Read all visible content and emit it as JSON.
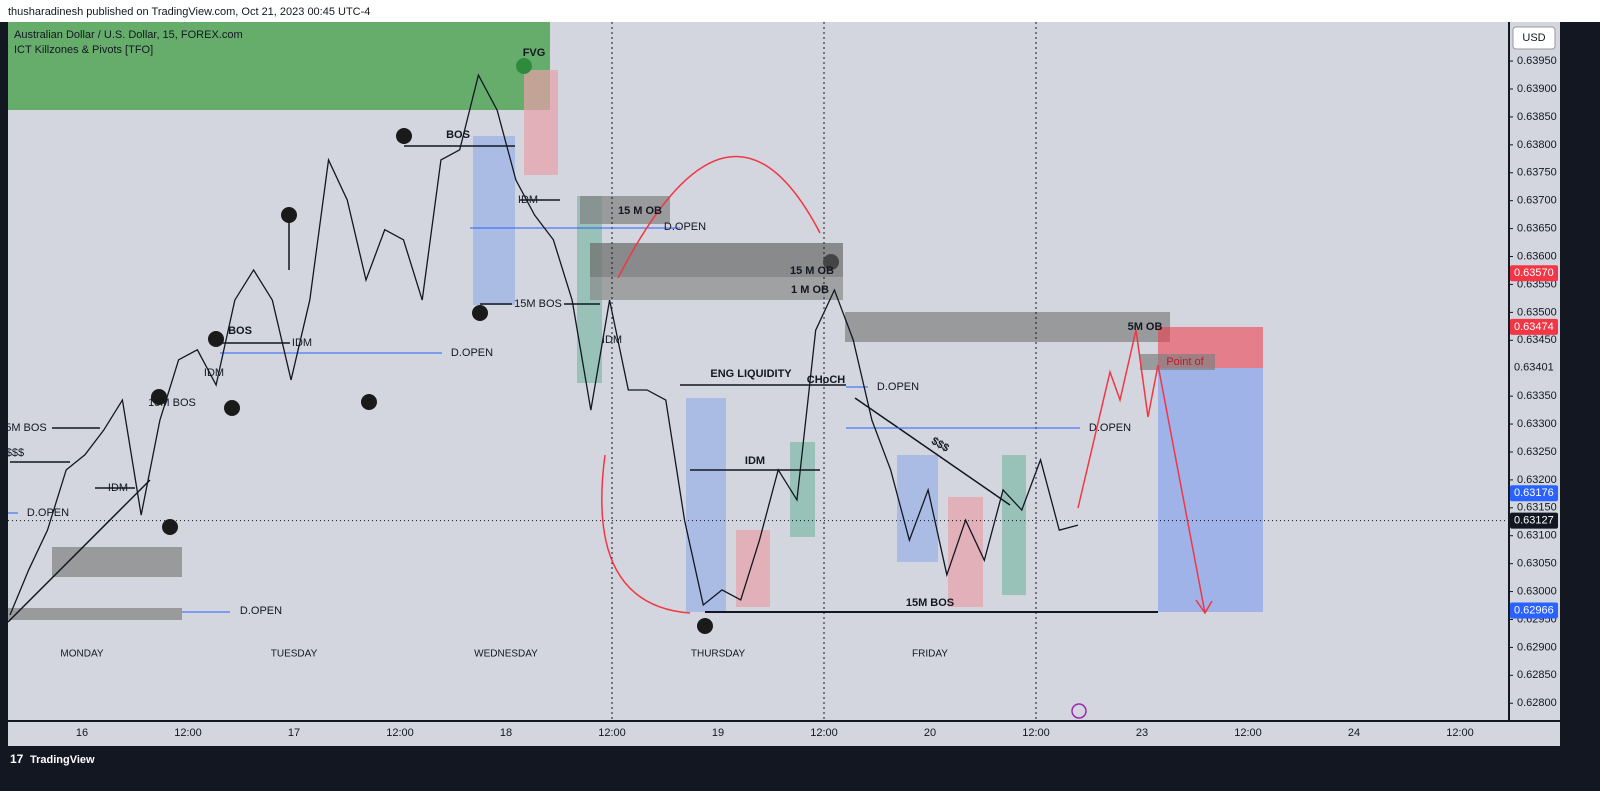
{
  "header": {
    "byline": "thusharadinesh published on TradingView.com, Oct 21, 2023 00:45 UTC-4"
  },
  "legend": {
    "symbol": "Australian Dollar / U.S. Dollar, 15, FOREX.com",
    "indicator": "ICT Killzones & Pivots [TFO]"
  },
  "currency": "USD",
  "footer": {
    "brand": "TradingView"
  },
  "chart_data": {
    "type": "line",
    "color": "#131722",
    "values": [
      0.62958,
      0.63039,
      0.6311,
      0.63218,
      0.63245,
      0.63289,
      0.63343,
      0.63137,
      0.63307,
      0.63415,
      0.63433,
      0.6337,
      0.63522,
      0.63576,
      0.63522,
      0.63379,
      0.63522,
      0.63773,
      0.63701,
      0.63558,
      0.63648,
      0.6363,
      0.63522,
      0.63773,
      0.63791,
      0.63925,
      0.63862,
      0.63737,
      0.63674,
      0.6363,
      0.63522,
      0.63325,
      0.63522,
      0.63361,
      0.63361,
      0.63343,
      0.63128,
      0.62976,
      0.63003,
      0.62985,
      0.63092,
      0.63218,
      0.63164,
      0.63468,
      0.6354,
      0.63451,
      0.63307,
      0.63218,
      0.63092,
      0.63182,
      0.6303,
      0.63128,
      0.63056,
      0.63182,
      0.63146,
      0.63236,
      0.6311,
      0.63119
    ],
    "ylim": [
      0.6277,
      0.6402
    ],
    "yticks": [
      {
        "value": 0.628,
        "label": "0.62800"
      },
      {
        "value": 0.6285,
        "label": "0.62850"
      },
      {
        "value": 0.629,
        "label": "0.62900"
      },
      {
        "value": 0.6295,
        "label": "0.62950"
      },
      {
        "value": 0.63,
        "label": "0.63000"
      },
      {
        "value": 0.6305,
        "label": "0.63050"
      },
      {
        "value": 0.631,
        "label": "0.63100"
      },
      {
        "value": 0.6315,
        "label": "0.63150"
      },
      {
        "value": 0.632,
        "label": "0.63200"
      },
      {
        "value": 0.6325,
        "label": "0.63250"
      },
      {
        "value": 0.633,
        "label": "0.63300"
      },
      {
        "value": 0.6335,
        "label": "0.63350"
      },
      {
        "value": 0.6345,
        "label": "0.63450"
      },
      {
        "value": 0.635,
        "label": "0.63500"
      },
      {
        "value": 0.6355,
        "label": "0.63550"
      },
      {
        "value": 0.636,
        "label": "0.63600"
      },
      {
        "value": 0.6365,
        "label": "0.63650"
      },
      {
        "value": 0.637,
        "label": "0.63700"
      },
      {
        "value": 0.6375,
        "label": "0.63750"
      },
      {
        "value": 0.638,
        "label": "0.63800"
      },
      {
        "value": 0.6385,
        "label": "0.63850"
      },
      {
        "value": 0.639,
        "label": "0.63900"
      },
      {
        "value": 0.6395,
        "label": "0.63950"
      }
    ],
    "price_labels": [
      {
        "value": 0.6357,
        "label": "0.63570",
        "color": "#f23645"
      },
      {
        "value": 0.63474,
        "label": "0.63474",
        "color": "#f23645"
      },
      {
        "value": 0.63401,
        "label": "0.63401",
        "color": "#d1d4dc"
      },
      {
        "value": 0.63176,
        "label": "0.63176",
        "color": "#2962ff"
      },
      {
        "value": 0.63127,
        "label": "0.63127",
        "color": "#131722"
      },
      {
        "value": 0.62966,
        "label": "0.62966",
        "color": "#2962ff"
      }
    ],
    "time_labels": [
      "16",
      "12:00",
      "17",
      "12:00",
      "18",
      "12:00",
      "19",
      "12:00",
      "20",
      "12:00",
      "23",
      "12:00",
      "24",
      "12:00"
    ],
    "day_labels": [
      "MONDAY",
      "TUESDAY",
      "WEDNESDAY",
      "THURSDAY",
      "FRIDAY"
    ]
  },
  "annotations": [
    "FVG",
    "BOS",
    "IDM",
    "15 M OB",
    "D.OPEN",
    "15M BOS",
    "15 M OB",
    "1 M OB",
    "5M OB",
    "Point of",
    "BOS",
    "IDM",
    "D.OPEN",
    "IDM",
    "15M BOS",
    "5M BOS",
    "$$$",
    "IDM",
    "D.OPEN",
    "D.OPEN",
    "IDM",
    "ENG LIQUIDITY",
    "CHoCH",
    "D.OPEN",
    "D.OPEN",
    "IDM",
    "$$$",
    "15M BOS"
  ]
}
